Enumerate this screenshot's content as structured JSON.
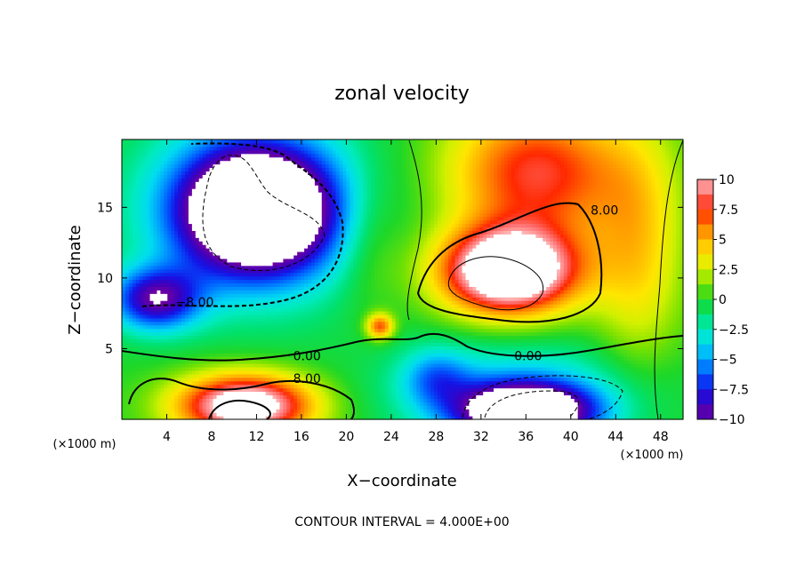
{
  "chart_data": {
    "type": "heatmap",
    "title": "zonal velocity",
    "xlabel": "X−coordinate",
    "ylabel": "Z−coordinate",
    "x_unit_label": "(×1000 m)",
    "xlim": [
      0,
      50
    ],
    "ylim": [
      0,
      19.8
    ],
    "x_ticks": [
      "4",
      "8",
      "12",
      "16",
      "20",
      "24",
      "28",
      "32",
      "36",
      "40",
      "44",
      "48"
    ],
    "y_ticks": [
      "5",
      "10",
      "15"
    ],
    "colorbar": {
      "range": [
        -10,
        10
      ],
      "tick_labels": [
        "10",
        "7.5",
        "5",
        "2.5",
        "0",
        "−2.5",
        "−5",
        "−7.5",
        "−10"
      ]
    },
    "contour_labels": [
      "8.00",
      "−8.00",
      "0.00",
      "0.00",
      "8.00"
    ],
    "footer": "CONTOUR INTERVAL = 4.000E+00",
    "features": [
      {
        "type": "low",
        "x": 12,
        "z": 15,
        "value": -14
      },
      {
        "type": "low",
        "x": 36,
        "z": 1,
        "value": -12
      },
      {
        "type": "high",
        "x": 34,
        "z": 10,
        "value": 14
      },
      {
        "type": "high",
        "x": 38,
        "z": 18,
        "value": 9
      },
      {
        "type": "high",
        "x": 11,
        "z": 1,
        "value": 12
      },
      {
        "type": "high",
        "x": 23,
        "z": 6.6,
        "value": 8
      },
      {
        "type": "low",
        "x": 3,
        "z": 8.5,
        "value": -8
      }
    ]
  }
}
